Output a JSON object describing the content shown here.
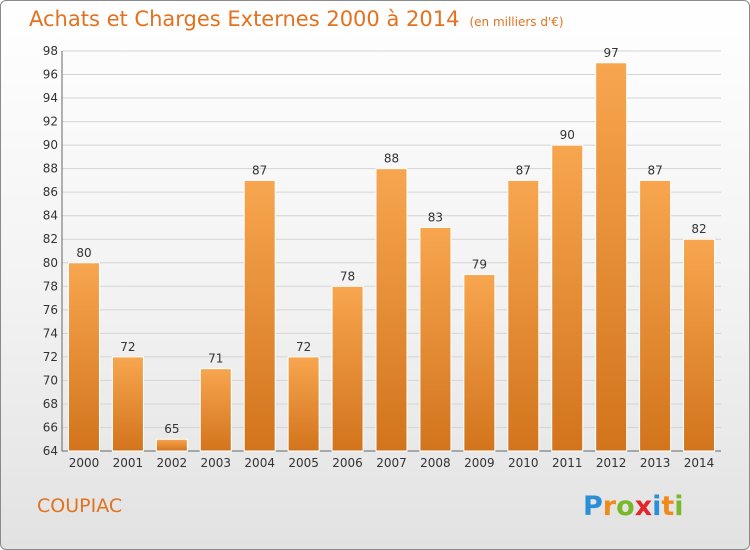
{
  "header": {
    "title": "Achats et Charges Externes 2000 à 2014",
    "unit": "(en milliers d'€)"
  },
  "footer": {
    "town": "COUPIAC",
    "logo_letters": [
      "P",
      "r",
      "o",
      "x",
      "i",
      "t",
      "i"
    ],
    "logo_colors": [
      "#2a8fd6",
      "#f08a1c",
      "#79b82b",
      "#e3262b",
      "#2a8fd6",
      "#f08a1c",
      "#79b82b"
    ]
  },
  "colors": {
    "bar_light": "#f7a64f",
    "bar_dark": "#d2741c",
    "text_accent": "#e2721f",
    "grid": "#d4d4d4"
  },
  "chart_data": {
    "type": "bar",
    "title": "Achats et Charges Externes 2000 à 2014",
    "subtitle": "(en milliers d'€)",
    "xlabel": "",
    "ylabel": "",
    "categories": [
      "2000",
      "2001",
      "2002",
      "2003",
      "2004",
      "2005",
      "2006",
      "2007",
      "2008",
      "2009",
      "2010",
      "2011",
      "2012",
      "2013",
      "2014"
    ],
    "values": [
      80,
      72,
      65,
      71,
      87,
      72,
      78,
      88,
      83,
      79,
      87,
      90,
      97,
      87,
      82
    ],
    "ylim": [
      64,
      98
    ],
    "yticks": [
      64,
      66,
      68,
      70,
      72,
      74,
      76,
      78,
      80,
      82,
      84,
      86,
      88,
      90,
      92,
      94,
      96,
      98
    ],
    "grid": true,
    "legend": "none"
  }
}
